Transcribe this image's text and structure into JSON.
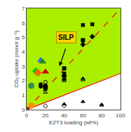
{
  "chart_data": {
    "type": "scatter",
    "xlabel": "EZT3 loading (wt%)",
    "ylabel": "CO₂ uptake (mmol g⁻¹)",
    "xlim": [
      0,
      100
    ],
    "ylim": [
      0,
      7.0
    ],
    "xticks": [
      0,
      20,
      40,
      60,
      80,
      100
    ],
    "yticks": [
      0,
      1.0,
      2.0,
      3.0,
      4.0,
      5.0,
      6.0,
      7.0
    ],
    "grid": false,
    "series": [
      {
        "type": "band",
        "color": "#aaee00",
        "x": [
          0,
          100
        ],
        "lower": [
          0,
          2.5
        ],
        "values": [
          0,
          7.0
        ]
      },
      {
        "type": "band",
        "color": "#aaee00",
        "x": [
          0,
          100
        ],
        "lower": [
          0,
          7.0
        ],
        "values": [
          7.0,
          7.0
        ]
      },
      {
        "type": "line",
        "color": "red",
        "line_style": "dash",
        "x": [
          0,
          100
        ],
        "values": [
          0,
          7.0
        ]
      },
      {
        "type": "line",
        "color": "red",
        "line_style": "solid",
        "x": [
          0,
          100
        ],
        "values": [
          0,
          2.5
        ]
      },
      {
        "type": "scatter",
        "color": "black",
        "marker": "x",
        "x": [
          20,
          40,
          60,
          70
        ],
        "values": [
          1.65,
          2.5,
          5.85,
          5.9
        ]
      },
      {
        "type": "scatter",
        "color": "black",
        "marker": "cross",
        "x": [
          20,
          40,
          60,
          70
        ],
        "values": [
          1.6,
          2.35,
          4.5,
          5.05
        ]
      },
      {
        "type": "scatter",
        "color": "black",
        "marker": "square",
        "x": [
          20,
          40,
          60
        ],
        "values": [
          1.55,
          2.85,
          4.8
        ]
      },
      {
        "type": "scatter",
        "color": "black",
        "marker": "square-open",
        "x": [
          20,
          40
        ],
        "values": [
          1.45,
          2.15
        ]
      },
      {
        "type": "scatter",
        "color": "black",
        "marker": "triangle-up",
        "x": [
          20,
          40,
          60,
          80
        ],
        "values": [
          1.5,
          2.1,
          2.15,
          0.35
        ]
      },
      {
        "type": "scatter",
        "color": "black",
        "marker": "triangle-up-open",
        "x": [
          20,
          40,
          60,
          80
        ],
        "values": [
          1.2,
          2.0,
          2.05,
          0.3
        ]
      },
      {
        "type": "scatter",
        "color": "black",
        "marker": "circle-open",
        "x": [
          20,
          40
        ],
        "values": [
          1.9,
          2.35
        ]
      },
      {
        "type": "scatter",
        "color": "black",
        "marker": "diamond-open",
        "x": [
          20,
          40
        ],
        "values": [
          0.25,
          0.28
        ]
      },
      {
        "type": "scatter",
        "color": "black",
        "marker": "triangle-up",
        "x": [
          40,
          60
        ],
        "values": [
          0.38,
          0.55
        ]
      },
      {
        "type": "scatter",
        "color": "black",
        "marker": "circle-open",
        "x": [
          0,
          20
        ],
        "values": [
          0.05,
          1.5
        ]
      },
      {
        "type": "scatter",
        "color": "#2e8b57",
        "marker": "circle",
        "x": [
          5
        ],
        "values": [
          1.65
        ]
      },
      {
        "type": "scatter",
        "color": "#ff8c00",
        "marker": "circle",
        "x": [
          5
        ],
        "values": [
          0.28
        ]
      },
      {
        "type": "scatter",
        "color": "#00cc00",
        "marker": "diamond",
        "x": [
          10
        ],
        "values": [
          2.65
        ]
      },
      {
        "type": "scatter",
        "color": "#ff6600",
        "marker": "diamond",
        "x": [
          12
        ],
        "values": [
          2.55
        ]
      },
      {
        "type": "scatter",
        "color": "#4169e1",
        "marker": "triangle-up",
        "x": [
          15
        ],
        "values": [
          3.42
        ]
      },
      {
        "type": "scatter",
        "color": "#228b22",
        "marker": "triangle-up",
        "x": [
          17
        ],
        "values": [
          3.32
        ]
      },
      {
        "type": "scatter",
        "color": "#cc0000",
        "marker": "triangle-up",
        "x": [
          20
        ],
        "values": [
          2.62
        ]
      },
      {
        "type": "scatter",
        "color": "black",
        "marker": "circle",
        "x": [
          15
        ],
        "values": [
          1.75
        ]
      },
      {
        "type": "scatter",
        "color": "black",
        "marker": "circle",
        "x": [
          15
        ],
        "values": [
          1.6
        ]
      }
    ],
    "annotations": [
      {
        "text": "SILP",
        "x": 42,
        "y": 5.0,
        "color": "#ffd700"
      }
    ],
    "arrows": [
      {
        "x_start": 42,
        "y_start": 4.3,
        "x_end": 35,
        "y_end": 3.0
      }
    ]
  }
}
